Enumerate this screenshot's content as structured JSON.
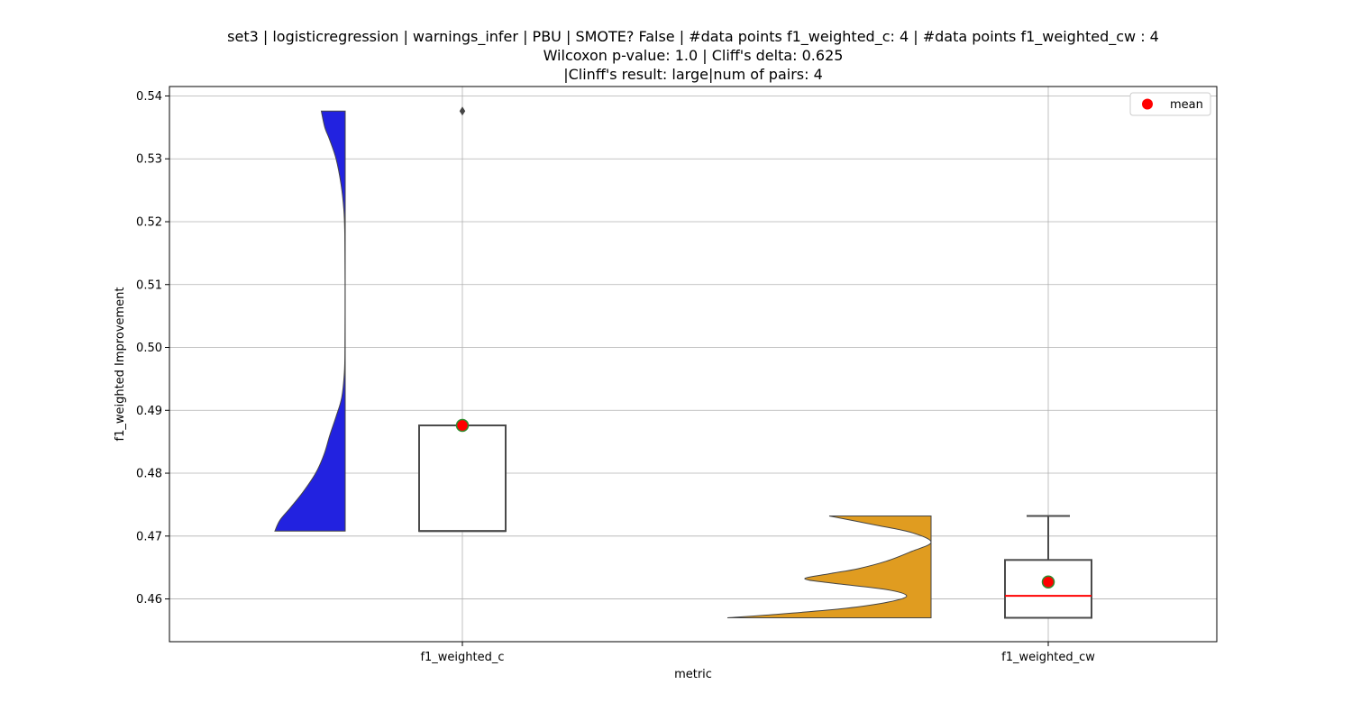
{
  "chart_data": {
    "type": "violin+box",
    "title_lines": [
      "set3 | logisticregression | warnings_infer | PBU | SMOTE? False | #data points f1_weighted_c: 4 | #data points f1_weighted_cw : 4",
      "Wilcoxon p-value: 1.0 | Cliff's delta: 0.625",
      "|Clinff's result: large|num of pairs: 4"
    ],
    "xlabel": "metric",
    "ylabel": "f1_weighted Improvement",
    "categories": [
      "f1_weighted_c",
      "f1_weighted_cw"
    ],
    "ylim": [
      0.4532,
      0.5415
    ],
    "yticks": [
      0.46,
      0.47,
      0.48,
      0.49,
      0.5,
      0.51,
      0.52,
      0.53,
      0.54
    ],
    "ytick_labels": [
      "0.46",
      "0.47",
      "0.48",
      "0.49",
      "0.50",
      "0.51",
      "0.52",
      "0.53",
      "0.54"
    ],
    "grid": true,
    "legend": {
      "position": "top-right",
      "entries": [
        {
          "label": "mean",
          "color": "#ff0000"
        }
      ]
    },
    "series": [
      {
        "category": "f1_weighted_c",
        "violin_color": "#2222e0",
        "violin_range": [
          0.4708,
          0.5376
        ],
        "violin_density": [
          [
            0.4708,
            1.0
          ],
          [
            0.4725,
            0.93
          ],
          [
            0.4745,
            0.78
          ],
          [
            0.477,
            0.6
          ],
          [
            0.48,
            0.42
          ],
          [
            0.483,
            0.3
          ],
          [
            0.486,
            0.22
          ],
          [
            0.489,
            0.13
          ],
          [
            0.492,
            0.05
          ],
          [
            0.496,
            0.012
          ],
          [
            0.5,
            0.004
          ],
          [
            0.51,
            0.002
          ],
          [
            0.518,
            0.006
          ],
          [
            0.522,
            0.02
          ],
          [
            0.526,
            0.06
          ],
          [
            0.53,
            0.13
          ],
          [
            0.533,
            0.22
          ],
          [
            0.535,
            0.29
          ],
          [
            0.5376,
            0.34
          ]
        ],
        "box": {
          "q1": 0.4708,
          "median": 0.4708,
          "q3": 0.4876,
          "whisker_low": 0.4708,
          "whisker_high": 0.4876
        },
        "mean": 0.4876,
        "outliers": [
          0.5376
        ]
      },
      {
        "category": "f1_weighted_cw",
        "violin_color": "#e09c20",
        "violin_range": [
          0.457,
          0.4732
        ],
        "violin_density": [
          [
            0.457,
            1.0
          ],
          [
            0.4575,
            0.78
          ],
          [
            0.4585,
            0.42
          ],
          [
            0.4595,
            0.21
          ],
          [
            0.4605,
            0.12
          ],
          [
            0.4615,
            0.22
          ],
          [
            0.4625,
            0.48
          ],
          [
            0.4632,
            0.62
          ],
          [
            0.464,
            0.5
          ],
          [
            0.4648,
            0.36
          ],
          [
            0.466,
            0.22
          ],
          [
            0.4675,
            0.1
          ],
          [
            0.469,
            0.0
          ],
          [
            0.4705,
            0.09
          ],
          [
            0.4718,
            0.28
          ],
          [
            0.4732,
            0.5
          ]
        ],
        "box": {
          "q1": 0.457,
          "median": 0.4605,
          "q3": 0.4662,
          "whisker_low": 0.457,
          "whisker_high": 0.4732
        },
        "mean": 0.4627,
        "outliers": []
      }
    ]
  }
}
